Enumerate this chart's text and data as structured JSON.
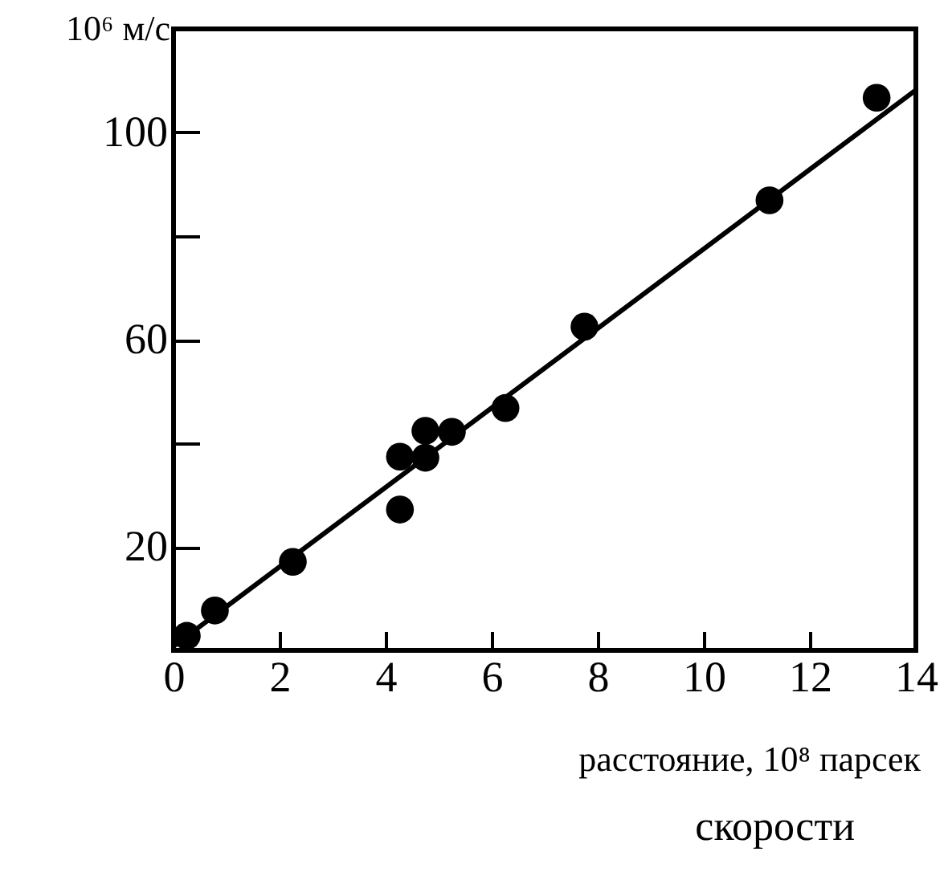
{
  "chart_data": {
    "type": "scatter",
    "xlabel": "расстояние, 10⁸ парсек",
    "ylabel": "10⁶ м/с",
    "annotations": [
      "скорости"
    ],
    "xlim": [
      0,
      14
    ],
    "xticks": [
      0,
      2,
      4,
      6,
      8,
      10,
      12,
      14
    ],
    "ylim": [
      0,
      120
    ],
    "yticks": [
      {
        "value": 20,
        "label": "20"
      },
      {
        "value": 40,
        "label": null
      },
      {
        "value": 60,
        "label": "60"
      },
      {
        "value": 80,
        "label": null
      },
      {
        "value": 100,
        "label": "100"
      }
    ],
    "grid": false,
    "series": [
      {
        "color": "#000000",
        "marker": "circle",
        "x": [
          0.25,
          0.78,
          2.25,
          4.27,
          4.27,
          4.75,
          4.75,
          5.25,
          6.26,
          7.75,
          11.24,
          13.26
        ],
        "values": [
          2.8,
          7.7,
          17.1,
          37.4,
          27.2,
          42.4,
          37.2,
          42.2,
          46.8,
          62.5,
          86.9,
          106.7
        ]
      },
      {
        "type": "line",
        "color": "#000000",
        "x": [
          0,
          14
        ],
        "values": [
          0.8,
          108.2
        ]
      }
    ]
  }
}
